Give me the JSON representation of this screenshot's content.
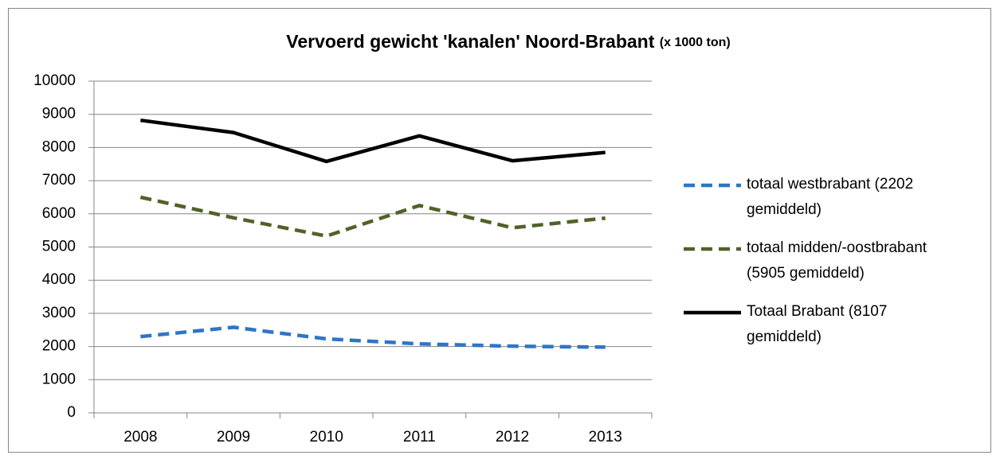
{
  "chart_data": {
    "type": "line",
    "title": "Vervoerd gewicht 'kanalen' Noord-Brabant",
    "subtitle": "(x 1000 ton)",
    "categories": [
      "2008",
      "2009",
      "2010",
      "2011",
      "2012",
      "2013"
    ],
    "series": [
      {
        "name": "totaal westbrabant (2202 gemiddeld)",
        "color": "#2e75c6",
        "dashed": true,
        "values": [
          2300,
          2580,
          2230,
          2080,
          2010,
          1980
        ]
      },
      {
        "name": "totaal midden/-oostbrabant (5905 gemiddeld)",
        "color": "#4f6228",
        "dashed": true,
        "values": [
          6500,
          5880,
          5330,
          6250,
          5580,
          5870
        ]
      },
      {
        "name": "Totaal Brabant (8107 gemiddeld)",
        "color": "#000000",
        "dashed": false,
        "values": [
          8820,
          8450,
          7580,
          8350,
          7600,
          7850
        ]
      }
    ],
    "ylim": [
      0,
      10000
    ],
    "yticks": [
      0,
      1000,
      2000,
      3000,
      4000,
      5000,
      6000,
      7000,
      8000,
      9000,
      10000
    ],
    "grid": true,
    "legend": "right"
  }
}
